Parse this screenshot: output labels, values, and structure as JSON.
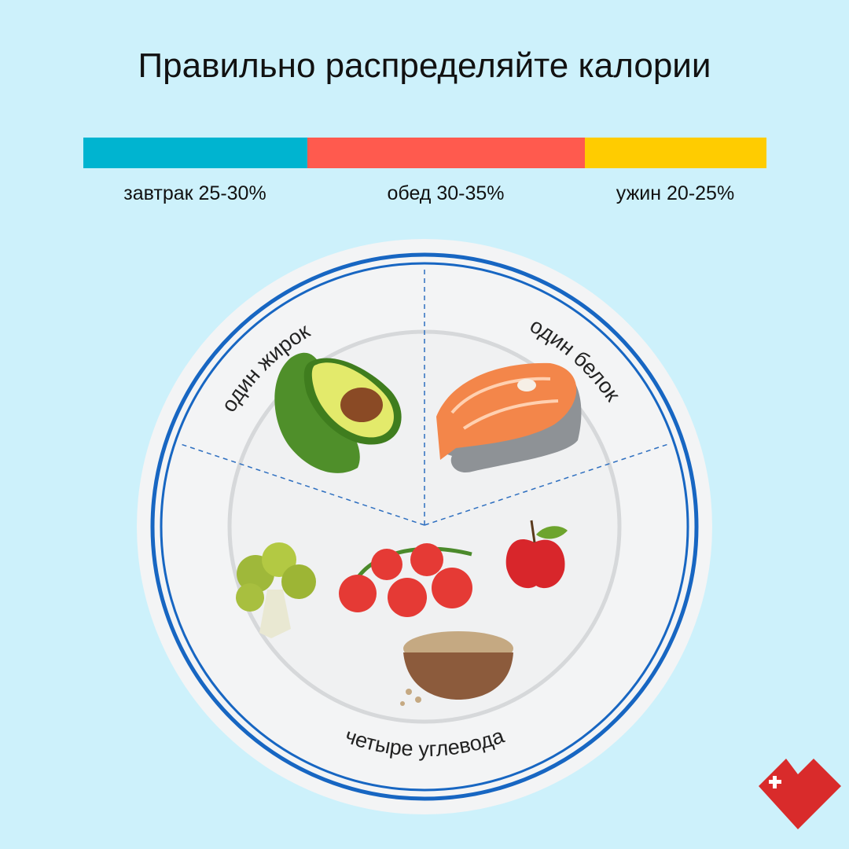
{
  "header": {
    "title": "Правильно распределяйте калории"
  },
  "meals": [
    {
      "label": "завтрак 25-30%",
      "color": "#00b4d0"
    },
    {
      "label": "обед 30-35%",
      "color": "#ff5a4e"
    },
    {
      "label": "ужин 20-25%",
      "color": "#ffcc00"
    }
  ],
  "plate": {
    "sections": [
      "один жирок",
      "один белок",
      "четыре углевода"
    ]
  }
}
